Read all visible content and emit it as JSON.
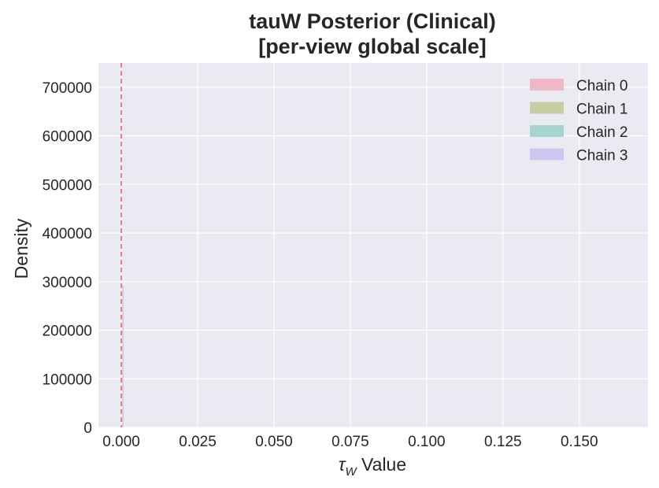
{
  "chart_data": {
    "type": "area",
    "title": [
      "tauW Posterior (Clinical)",
      "[per-view global scale]"
    ],
    "xlabel_symbol": "τ",
    "xlabel_subscript": "W",
    "xlabel_suffix": " Value",
    "ylabel": "Density",
    "xlim": [
      -0.0075,
      0.1725
    ],
    "ylim": [
      0,
      750000
    ],
    "x_ticks": [
      0.0,
      0.025,
      0.05,
      0.075,
      0.1,
      0.125,
      0.15
    ],
    "x_tick_labels": [
      "0.000",
      "0.025",
      "0.050",
      "0.075",
      "0.100",
      "0.125",
      "0.150"
    ],
    "y_ticks": [
      0,
      100000,
      200000,
      300000,
      400000,
      500000,
      600000,
      700000
    ],
    "y_tick_labels": [
      "0",
      "100000",
      "200000",
      "300000",
      "400000",
      "500000",
      "600000",
      "700000"
    ],
    "grid": true,
    "legend_position": "top-right",
    "series": [
      {
        "name": "Chain 0",
        "color": "#f0b8c6"
      },
      {
        "name": "Chain 1",
        "color": "#c5cfa3"
      },
      {
        "name": "Chain 2",
        "color": "#a5d4d1"
      },
      {
        "name": "Chain 3",
        "color": "#cfc6f0"
      }
    ],
    "reference_line": {
      "x": 0.0,
      "color": "#e8656b",
      "style": "dashed"
    },
    "colors": {
      "plot_background": "#eaeaf2",
      "grid": "#ffffff",
      "text": "#262626"
    }
  }
}
